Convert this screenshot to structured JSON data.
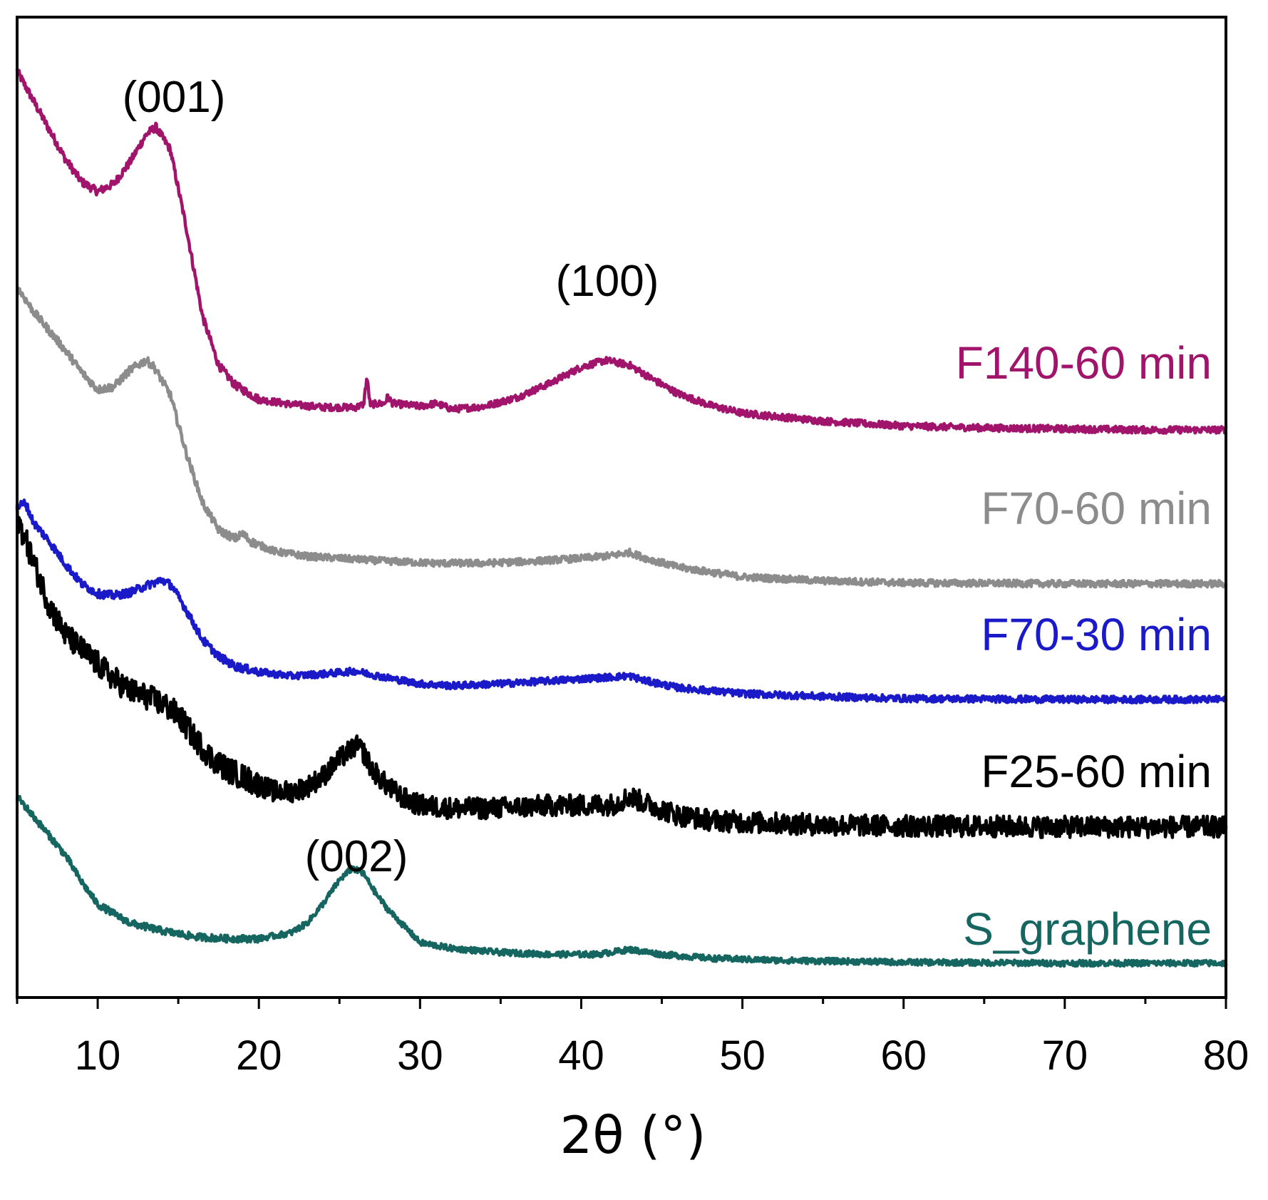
{
  "chart_data": {
    "type": "line",
    "title": "",
    "xlabel": "2θ (°)",
    "ylabel": "",
    "xlim": [
      5,
      80
    ],
    "ylim": [
      0,
      100
    ],
    "xticks": [
      10,
      20,
      30,
      40,
      50,
      60,
      70,
      80
    ],
    "xtick_labels": [
      "10",
      "20",
      "30",
      "40",
      "50",
      "60",
      "70",
      "80"
    ],
    "grid": false,
    "annotations": [
      {
        "id": "peak-001",
        "text": "(001)",
        "x": 13.5,
        "y": 93.5
      },
      {
        "id": "peak-100",
        "text": "(100)",
        "x": 41.5,
        "y": 72.5
      },
      {
        "id": "peak-002",
        "text": "(002)",
        "x": 26.0,
        "y": 15.5
      }
    ],
    "series": [
      {
        "name": "F140-60 min",
        "color": "#A0146B",
        "noise": 0.35,
        "points": [
          [
            5,
            94.5
          ],
          [
            6,
            91.5
          ],
          [
            7,
            88.5
          ],
          [
            8,
            85.5
          ],
          [
            9,
            83.2
          ],
          [
            10,
            82.2
          ],
          [
            11,
            83.0
          ],
          [
            12,
            85.2
          ],
          [
            13,
            88.0
          ],
          [
            13.6,
            88.8
          ],
          [
            14.5,
            86.5
          ],
          [
            15.5,
            78.5
          ],
          [
            16.5,
            69.5
          ],
          [
            17.5,
            64.5
          ],
          [
            18.5,
            62.5
          ],
          [
            20,
            61.0
          ],
          [
            22,
            60.5
          ],
          [
            24,
            60.2
          ],
          [
            26,
            60.2
          ],
          [
            26.5,
            60.5
          ],
          [
            26.7,
            63.3
          ],
          [
            26.9,
            60.5
          ],
          [
            27.8,
            60.6
          ],
          [
            28,
            61.3
          ],
          [
            28.3,
            60.6
          ],
          [
            30,
            60.3
          ],
          [
            31,
            60.6
          ],
          [
            32,
            60.0
          ],
          [
            34,
            60.3
          ],
          [
            36,
            61.2
          ],
          [
            38,
            62.6
          ],
          [
            40,
            64.3
          ],
          [
            41.5,
            65.0
          ],
          [
            43,
            64.5
          ],
          [
            44.5,
            63.0
          ],
          [
            46,
            61.6
          ],
          [
            48,
            60.4
          ],
          [
            50,
            59.6
          ],
          [
            55,
            58.8
          ],
          [
            60,
            58.3
          ],
          [
            65,
            58.1
          ],
          [
            70,
            58.0
          ],
          [
            75,
            57.9
          ],
          [
            80,
            57.9
          ]
        ]
      },
      {
        "name": "F70-60 min",
        "color": "#8C8C8C",
        "noise": 0.35,
        "points": [
          [
            5,
            72.5
          ],
          [
            6,
            70.0
          ],
          [
            7,
            68.0
          ],
          [
            8,
            66.0
          ],
          [
            9,
            63.8
          ],
          [
            10,
            62.0
          ],
          [
            11,
            62.3
          ],
          [
            12,
            64.0
          ],
          [
            13,
            65.0
          ],
          [
            13.5,
            64.3
          ],
          [
            14.5,
            61.5
          ],
          [
            15.5,
            55.5
          ],
          [
            16.5,
            50.5
          ],
          [
            17.5,
            47.7
          ],
          [
            18.5,
            46.8
          ],
          [
            19,
            47.3
          ],
          [
            19.5,
            46.5
          ],
          [
            21,
            45.5
          ],
          [
            23,
            45.0
          ],
          [
            25,
            44.8
          ],
          [
            28,
            44.5
          ],
          [
            31,
            44.3
          ],
          [
            34,
            44.3
          ],
          [
            37,
            44.5
          ],
          [
            40,
            44.8
          ],
          [
            42,
            45.1
          ],
          [
            43,
            45.4
          ],
          [
            44,
            44.8
          ],
          [
            46,
            43.9
          ],
          [
            48,
            43.4
          ],
          [
            50,
            42.9
          ],
          [
            55,
            42.5
          ],
          [
            60,
            42.3
          ],
          [
            70,
            42.2
          ],
          [
            80,
            42.2
          ]
        ]
      },
      {
        "name": "F70-30 min",
        "color": "#1A1AC8",
        "noise": 0.35,
        "points": [
          [
            5,
            50.0
          ],
          [
            5.5,
            50.5
          ],
          [
            6,
            48.5
          ],
          [
            7,
            46.5
          ],
          [
            8,
            44.2
          ],
          [
            9,
            42.2
          ],
          [
            10,
            41.2
          ],
          [
            11,
            41.0
          ],
          [
            12,
            41.3
          ],
          [
            13,
            42.0
          ],
          [
            14,
            42.6
          ],
          [
            14.6,
            42.0
          ],
          [
            15.5,
            39.5
          ],
          [
            16.5,
            36.5
          ],
          [
            17.5,
            34.8
          ],
          [
            18.5,
            33.8
          ],
          [
            20,
            33.2
          ],
          [
            22,
            32.8
          ],
          [
            24,
            33.0
          ],
          [
            26,
            33.3
          ],
          [
            28,
            32.6
          ],
          [
            30,
            32.0
          ],
          [
            32,
            31.8
          ],
          [
            35,
            32.0
          ],
          [
            38,
            32.3
          ],
          [
            41,
            32.6
          ],
          [
            43,
            32.8
          ],
          [
            44,
            32.3
          ],
          [
            46,
            31.6
          ],
          [
            48,
            31.3
          ],
          [
            50,
            31.0
          ],
          [
            55,
            30.7
          ],
          [
            60,
            30.5
          ],
          [
            70,
            30.4
          ],
          [
            80,
            30.4
          ]
        ]
      },
      {
        "name": "F25-60 min",
        "color": "#000000",
        "noise": 1.1,
        "points": [
          [
            5,
            49.0
          ],
          [
            6,
            44.5
          ],
          [
            7,
            40.0
          ],
          [
            8,
            37.0
          ],
          [
            9,
            35.5
          ],
          [
            10,
            34.0
          ],
          [
            11,
            32.5
          ],
          [
            12,
            31.3
          ],
          [
            13,
            30.7
          ],
          [
            14,
            30.0
          ],
          [
            15,
            28.8
          ],
          [
            16,
            26.5
          ],
          [
            17,
            24.5
          ],
          [
            18,
            23.3
          ],
          [
            19,
            22.5
          ],
          [
            20,
            21.7
          ],
          [
            21,
            21.0
          ],
          [
            22,
            21.0
          ],
          [
            23,
            21.5
          ],
          [
            24,
            22.6
          ],
          [
            25,
            24.3
          ],
          [
            26,
            25.7
          ],
          [
            26.5,
            25.0
          ],
          [
            27,
            23.3
          ],
          [
            28,
            21.5
          ],
          [
            29,
            20.3
          ],
          [
            30,
            19.6
          ],
          [
            32,
            19.3
          ],
          [
            34,
            19.3
          ],
          [
            36,
            19.4
          ],
          [
            38,
            19.6
          ],
          [
            40,
            19.6
          ],
          [
            42,
            19.7
          ],
          [
            43,
            20.5
          ],
          [
            44,
            19.8
          ],
          [
            46,
            18.6
          ],
          [
            48,
            18.1
          ],
          [
            50,
            17.9
          ],
          [
            55,
            17.6
          ],
          [
            60,
            17.5
          ],
          [
            70,
            17.4
          ],
          [
            80,
            17.4
          ]
        ]
      },
      {
        "name": "S_graphene",
        "color": "#156660",
        "noise": 0.3,
        "points": [
          [
            5,
            20.5
          ],
          [
            6,
            18.5
          ],
          [
            7,
            16.5
          ],
          [
            8,
            14.5
          ],
          [
            9,
            11.8
          ],
          [
            10,
            9.5
          ],
          [
            12,
            7.6
          ],
          [
            14,
            6.8
          ],
          [
            16,
            6.2
          ],
          [
            18,
            6.0
          ],
          [
            20,
            6.0
          ],
          [
            22,
            6.6
          ],
          [
            23,
            7.6
          ],
          [
            24,
            9.6
          ],
          [
            25,
            12.0
          ],
          [
            25.8,
            13.2
          ],
          [
            26.5,
            12.6
          ],
          [
            27.3,
            10.5
          ],
          [
            28,
            9.0
          ],
          [
            29,
            7.3
          ],
          [
            30,
            5.6
          ],
          [
            32,
            5.0
          ],
          [
            35,
            4.6
          ],
          [
            38,
            4.4
          ],
          [
            41,
            4.4
          ],
          [
            43,
            4.9
          ],
          [
            45,
            4.4
          ],
          [
            48,
            4.0
          ],
          [
            52,
            3.8
          ],
          [
            60,
            3.6
          ],
          [
            70,
            3.5
          ],
          [
            80,
            3.5
          ]
        ]
      }
    ]
  }
}
